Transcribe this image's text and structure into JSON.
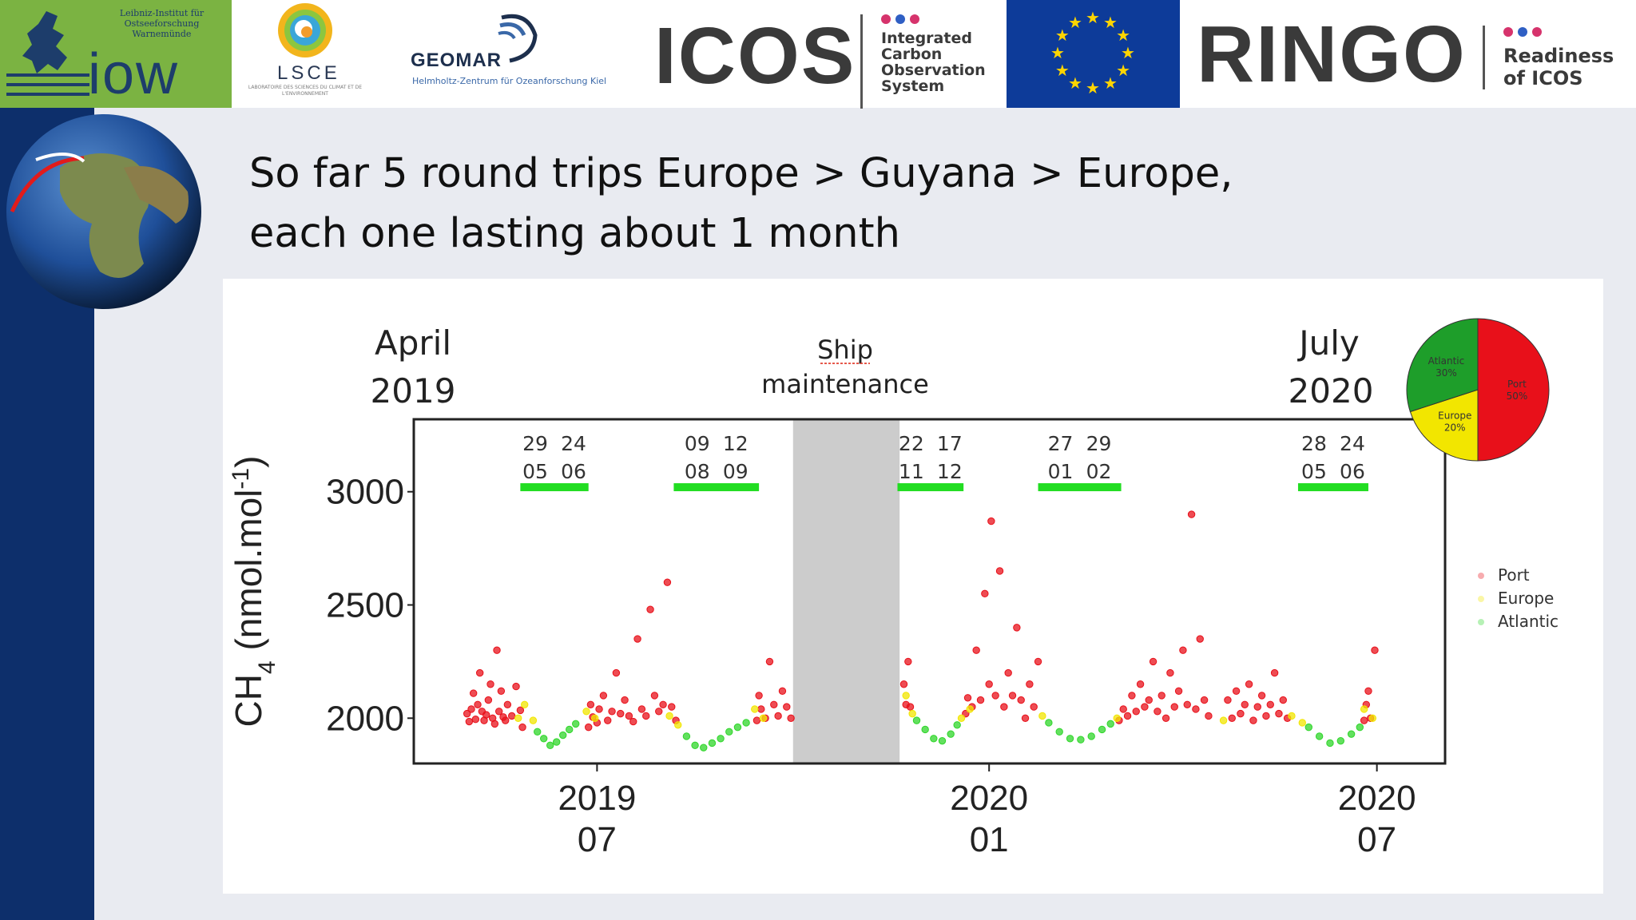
{
  "banner": {
    "iow_institute": "Leibniz-Institut für Ostseeforschung Warnemünde",
    "iow_mark": "iow",
    "lsce_name": "LSCE",
    "lsce_subtitle": "LABORATOIRE DES SCIENCES DU CLIMAT ET DE L'ENVIRONNEMENT",
    "geomar_name": "GEOMAR",
    "geomar_subtitle": "Helmholtz-Zentrum für Ozeanforschung Kiel",
    "icos_name": "ICOS",
    "icos_subtitle_lines": [
      "Integrated",
      "Carbon",
      "Observation",
      "System"
    ],
    "ringo_name": "RINGO",
    "ringo_subtitle_lines": [
      "Readiness",
      "of ICOS"
    ],
    "colors": {
      "iow_green": "#7bb342",
      "eu_blue": "#0d3b99",
      "dot_pink": "#d6336c",
      "dot_blue": "#2f5fc4"
    }
  },
  "slide": {
    "heading_line1": "So far 5 round trips Europe > Guyana > Europe,",
    "heading_line2": "each one lasting about 1 month",
    "icons": [
      "globe-icon"
    ]
  },
  "chart_data": {
    "type": "scatter",
    "ylabel": "CH4 (nmol.mol-1)",
    "ylim": [
      1800,
      3320
    ],
    "yticks": [
      2000,
      2500,
      3000
    ],
    "xlim": [
      "2019-04-06",
      "2020-08-02"
    ],
    "xticks": [
      {
        "date": "2019-07-01",
        "line1": "2019",
        "line2": "07"
      },
      {
        "date": "2020-01-01",
        "line1": "2020",
        "line2": "01"
      },
      {
        "date": "2020-07-01",
        "line1": "2020",
        "line2": "07"
      }
    ],
    "top_labels": {
      "start": [
        "April",
        "2019"
      ],
      "middle": [
        "Ship",
        "maintenance"
      ],
      "end": [
        "July",
        "2020"
      ]
    },
    "maintenance_period": {
      "start": "2019-10-01",
      "end": "2019-11-20"
    },
    "trips": [
      {
        "start": "2019-05-29",
        "end": "2019-06-24",
        "label_top": [
          "29",
          "24"
        ],
        "label_bottom": [
          "05",
          "06"
        ]
      },
      {
        "start": "2019-08-09",
        "end": "2019-09-12",
        "label_top": [
          "09",
          "12"
        ],
        "label_bottom": [
          "08",
          "09"
        ]
      },
      {
        "start": "2019-11-22",
        "end": "2019-12-17",
        "label_top": [
          "22",
          "17"
        ],
        "label_bottom": [
          "11",
          "12"
        ]
      },
      {
        "start": "2020-01-27",
        "end": "2020-02-29",
        "label_top": [
          "27",
          "29"
        ],
        "label_bottom": [
          "01",
          "02"
        ]
      },
      {
        "start": "2020-05-28",
        "end": "2020-06-24",
        "label_top": [
          "28",
          "24"
        ],
        "label_bottom": [
          "05",
          "06"
        ]
      }
    ],
    "legend": {
      "placement": "right",
      "entries": [
        "Port",
        "Europe",
        "Atlantic"
      ]
    },
    "colors": {
      "Port": "#e8101a",
      "Europe": "#f2e600",
      "Atlantic": "#2fd62a",
      "trip_bar": "#22dd22",
      "maintenance": "#cccccc"
    },
    "pie": {
      "placement": "top-right",
      "slices": [
        {
          "name": "Port",
          "label": "Port",
          "pct_label": "50%",
          "value": 50,
          "color": "#e8101a"
        },
        {
          "name": "Europe",
          "label": "Europe",
          "pct_label": "20%",
          "value": 20,
          "color": "#f2e600"
        },
        {
          "name": "Atlantic",
          "label": "Atlantic",
          "pct_label": "30%",
          "value": 30,
          "color": "#1e9e2a"
        }
      ]
    },
    "series": [
      {
        "name": "Port",
        "points": [
          [
            "2019-05-01",
            2020
          ],
          [
            "2019-05-02",
            1985
          ],
          [
            "2019-05-03",
            2040
          ],
          [
            "2019-05-04",
            2110
          ],
          [
            "2019-05-05",
            1995
          ],
          [
            "2019-05-06",
            2060
          ],
          [
            "2019-05-07",
            2200
          ],
          [
            "2019-05-08",
            2030
          ],
          [
            "2019-05-09",
            1990
          ],
          [
            "2019-05-10",
            2015
          ],
          [
            "2019-05-11",
            2080
          ],
          [
            "2019-05-12",
            2150
          ],
          [
            "2019-05-13",
            2000
          ],
          [
            "2019-05-14",
            1975
          ],
          [
            "2019-05-15",
            2300
          ],
          [
            "2019-05-16",
            2030
          ],
          [
            "2019-05-17",
            2120
          ],
          [
            "2019-05-18",
            2005
          ],
          [
            "2019-05-19",
            1990
          ],
          [
            "2019-05-20",
            2060
          ],
          [
            "2019-05-22",
            2010
          ],
          [
            "2019-05-24",
            2140
          ],
          [
            "2019-05-26",
            2035
          ],
          [
            "2019-05-27",
            1960
          ],
          [
            "2019-06-27",
            1960
          ],
          [
            "2019-06-28",
            2060
          ],
          [
            "2019-06-29",
            2005
          ],
          [
            "2019-07-01",
            1980
          ],
          [
            "2019-07-02",
            2040
          ],
          [
            "2019-07-04",
            2100
          ],
          [
            "2019-07-06",
            1990
          ],
          [
            "2019-07-08",
            2030
          ],
          [
            "2019-07-10",
            2200
          ],
          [
            "2019-07-12",
            2020
          ],
          [
            "2019-07-14",
            2080
          ],
          [
            "2019-07-16",
            2010
          ],
          [
            "2019-07-18",
            1985
          ],
          [
            "2019-07-20",
            2350
          ],
          [
            "2019-07-22",
            2040
          ],
          [
            "2019-07-24",
            2010
          ],
          [
            "2019-07-26",
            2480
          ],
          [
            "2019-07-28",
            2100
          ],
          [
            "2019-07-30",
            2030
          ],
          [
            "2019-08-01",
            2060
          ],
          [
            "2019-08-03",
            2600
          ],
          [
            "2019-08-05",
            2050
          ],
          [
            "2019-08-07",
            1990
          ],
          [
            "2019-09-14",
            1990
          ],
          [
            "2019-09-15",
            2100
          ],
          [
            "2019-09-16",
            2040
          ],
          [
            "2019-09-18",
            2000
          ],
          [
            "2019-09-20",
            2250
          ],
          [
            "2019-09-22",
            2060
          ],
          [
            "2019-09-24",
            2010
          ],
          [
            "2019-09-26",
            2120
          ],
          [
            "2019-09-28",
            2050
          ],
          [
            "2019-09-30",
            2000
          ],
          [
            "2019-11-22",
            2150
          ],
          [
            "2019-11-23",
            2060
          ],
          [
            "2019-11-24",
            2250
          ],
          [
            "2019-11-25",
            2050
          ],
          [
            "2019-12-21",
            2020
          ],
          [
            "2019-12-22",
            2090
          ],
          [
            "2019-12-24",
            2050
          ],
          [
            "2019-12-26",
            2300
          ],
          [
            "2019-12-28",
            2080
          ],
          [
            "2019-12-30",
            2550
          ],
          [
            "2020-01-01",
            2150
          ],
          [
            "2020-01-02",
            2870
          ],
          [
            "2020-01-04",
            2100
          ],
          [
            "2020-01-06",
            2650
          ],
          [
            "2020-01-08",
            2050
          ],
          [
            "2020-01-10",
            2200
          ],
          [
            "2020-01-12",
            2100
          ],
          [
            "2020-01-14",
            2400
          ],
          [
            "2020-01-16",
            2080
          ],
          [
            "2020-01-18",
            2000
          ],
          [
            "2020-01-20",
            2150
          ],
          [
            "2020-01-22",
            2050
          ],
          [
            "2020-01-24",
            2250
          ],
          [
            "2020-03-02",
            1990
          ],
          [
            "2020-03-04",
            2040
          ],
          [
            "2020-03-06",
            2010
          ],
          [
            "2020-03-08",
            2100
          ],
          [
            "2020-03-10",
            2030
          ],
          [
            "2020-03-12",
            2150
          ],
          [
            "2020-03-14",
            2050
          ],
          [
            "2020-03-16",
            2080
          ],
          [
            "2020-03-18",
            2250
          ],
          [
            "2020-03-20",
            2030
          ],
          [
            "2020-03-22",
            2100
          ],
          [
            "2020-03-24",
            2000
          ],
          [
            "2020-03-26",
            2200
          ],
          [
            "2020-03-28",
            2050
          ],
          [
            "2020-03-30",
            2120
          ],
          [
            "2020-04-01",
            2300
          ],
          [
            "2020-04-03",
            2060
          ],
          [
            "2020-04-05",
            2900
          ],
          [
            "2020-04-07",
            2040
          ],
          [
            "2020-04-09",
            2350
          ],
          [
            "2020-04-11",
            2080
          ],
          [
            "2020-04-13",
            2010
          ],
          [
            "2020-04-22",
            2080
          ],
          [
            "2020-04-24",
            2000
          ],
          [
            "2020-04-26",
            2120
          ],
          [
            "2020-04-28",
            2020
          ],
          [
            "2020-04-30",
            2060
          ],
          [
            "2020-05-02",
            2150
          ],
          [
            "2020-05-04",
            1990
          ],
          [
            "2020-05-06",
            2050
          ],
          [
            "2020-05-08",
            2100
          ],
          [
            "2020-05-10",
            2010
          ],
          [
            "2020-05-12",
            2060
          ],
          [
            "2020-05-14",
            2200
          ],
          [
            "2020-05-16",
            2020
          ],
          [
            "2020-05-18",
            2080
          ],
          [
            "2020-05-20",
            2000
          ],
          [
            "2020-06-25",
            1990
          ],
          [
            "2020-06-26",
            2060
          ],
          [
            "2020-06-27",
            2120
          ],
          [
            "2020-06-28",
            2000
          ],
          [
            "2020-06-30",
            2300
          ]
        ]
      },
      {
        "name": "Europe",
        "points": [
          [
            "2019-05-25",
            2000
          ],
          [
            "2019-05-28",
            2060
          ],
          [
            "2019-06-01",
            1990
          ],
          [
            "2019-06-26",
            2030
          ],
          [
            "2019-06-30",
            2000
          ],
          [
            "2019-08-04",
            2010
          ],
          [
            "2019-08-08",
            1970
          ],
          [
            "2019-09-13",
            2040
          ],
          [
            "2019-09-17",
            2000
          ],
          [
            "2019-11-23",
            2100
          ],
          [
            "2019-11-26",
            2020
          ],
          [
            "2019-12-19",
            2000
          ],
          [
            "2019-12-23",
            2040
          ],
          [
            "2020-01-26",
            2010
          ],
          [
            "2020-03-01",
            2000
          ],
          [
            "2020-04-20",
            1990
          ],
          [
            "2020-05-22",
            2010
          ],
          [
            "2020-05-27",
            1980
          ],
          [
            "2020-06-25",
            2040
          ],
          [
            "2020-06-29",
            2000
          ]
        ]
      },
      {
        "name": "Atlantic",
        "points": [
          [
            "2019-06-03",
            1940
          ],
          [
            "2019-06-06",
            1910
          ],
          [
            "2019-06-09",
            1880
          ],
          [
            "2019-06-12",
            1895
          ],
          [
            "2019-06-15",
            1925
          ],
          [
            "2019-06-18",
            1950
          ],
          [
            "2019-06-21",
            1975
          ],
          [
            "2019-08-12",
            1920
          ],
          [
            "2019-08-16",
            1880
          ],
          [
            "2019-08-20",
            1870
          ],
          [
            "2019-08-24",
            1890
          ],
          [
            "2019-08-28",
            1910
          ],
          [
            "2019-09-01",
            1940
          ],
          [
            "2019-09-05",
            1960
          ],
          [
            "2019-09-09",
            1980
          ],
          [
            "2019-11-28",
            1990
          ],
          [
            "2019-12-02",
            1950
          ],
          [
            "2019-12-06",
            1910
          ],
          [
            "2019-12-10",
            1900
          ],
          [
            "2019-12-14",
            1930
          ],
          [
            "2019-12-17",
            1970
          ],
          [
            "2020-01-29",
            1980
          ],
          [
            "2020-02-03",
            1940
          ],
          [
            "2020-02-08",
            1910
          ],
          [
            "2020-02-13",
            1905
          ],
          [
            "2020-02-18",
            1920
          ],
          [
            "2020-02-23",
            1950
          ],
          [
            "2020-02-27",
            1975
          ],
          [
            "2020-05-30",
            1960
          ],
          [
            "2020-06-04",
            1920
          ],
          [
            "2020-06-09",
            1890
          ],
          [
            "2020-06-14",
            1900
          ],
          [
            "2020-06-19",
            1930
          ],
          [
            "2020-06-23",
            1960
          ]
        ]
      }
    ]
  }
}
